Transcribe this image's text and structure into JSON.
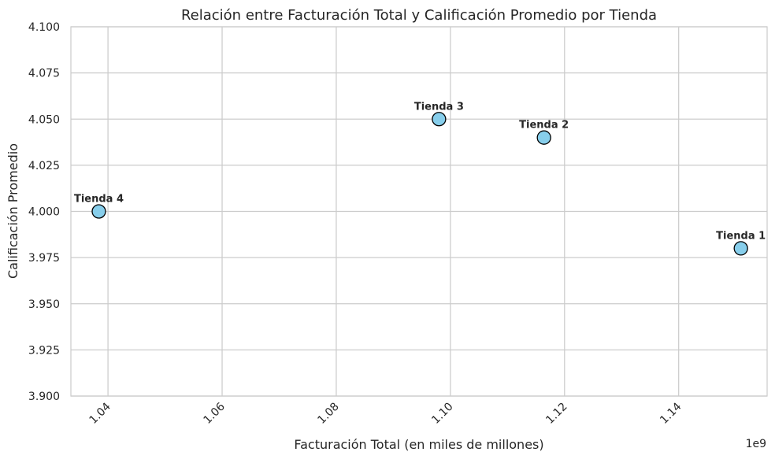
{
  "chart_data": {
    "type": "scatter",
    "title": "Relación entre Facturación Total y Calificación Promedio por Tienda",
    "xlabel": "Facturación Total (en miles de millones)",
    "ylabel": "Calificación Promedio",
    "x_offset_label": "1e9",
    "xlim": [
      1.0335,
      1.1555
    ],
    "ylim": [
      3.9,
      4.1
    ],
    "x_ticks": [
      1.04,
      1.06,
      1.08,
      1.1,
      1.12,
      1.14
    ],
    "x_tick_labels": [
      "1.04",
      "1.06",
      "1.08",
      "1.10",
      "1.12",
      "1.14"
    ],
    "y_ticks": [
      3.9,
      3.925,
      3.95,
      3.975,
      4.0,
      4.025,
      4.05,
      4.075,
      4.1
    ],
    "y_tick_labels": [
      "3.900",
      "3.925",
      "3.950",
      "3.975",
      "4.000",
      "4.025",
      "4.050",
      "4.075",
      "4.100"
    ],
    "grid": true,
    "points": [
      {
        "label": "Tienda 1",
        "x": 1.1509,
        "y": 3.98
      },
      {
        "label": "Tienda 2",
        "x": 1.1164,
        "y": 4.04
      },
      {
        "label": "Tienda 3",
        "x": 1.098,
        "y": 4.05
      },
      {
        "label": "Tienda 4",
        "x": 1.0384,
        "y": 4.0
      }
    ],
    "colors": {
      "marker_fill": "#87ceeb",
      "marker_edge": "#000000",
      "grid": "#cccccc",
      "spine": "#cccccc"
    }
  }
}
